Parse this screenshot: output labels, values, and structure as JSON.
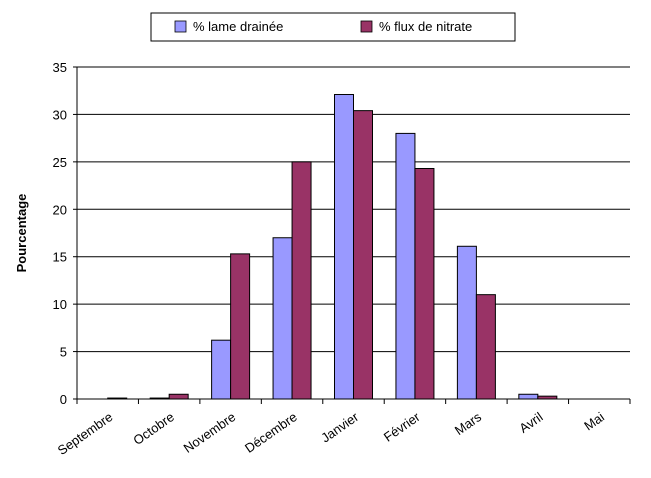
{
  "chart_data": {
    "type": "bar",
    "categories": [
      "Septembre",
      "Octobre",
      "Novembre",
      "Décembre",
      "Janvier",
      "Février",
      "Mars",
      "Avril",
      "Mai"
    ],
    "series": [
      {
        "name": "% lame drainée",
        "color": "#9999ff",
        "values": [
          0,
          0.1,
          6.2,
          17,
          32.1,
          28,
          16.1,
          0.5,
          0
        ]
      },
      {
        "name": "% flux de nitrate",
        "color": "#993366",
        "values": [
          0.1,
          0.5,
          15.3,
          25,
          30.4,
          24.3,
          11,
          0.3,
          0
        ]
      }
    ],
    "xlabel": "",
    "ylabel": "Pourcentage",
    "ylim": [
      0,
      35
    ],
    "yticks": [
      0,
      5,
      10,
      15,
      20,
      25,
      30,
      35
    ],
    "grid": true,
    "legend": "top"
  }
}
